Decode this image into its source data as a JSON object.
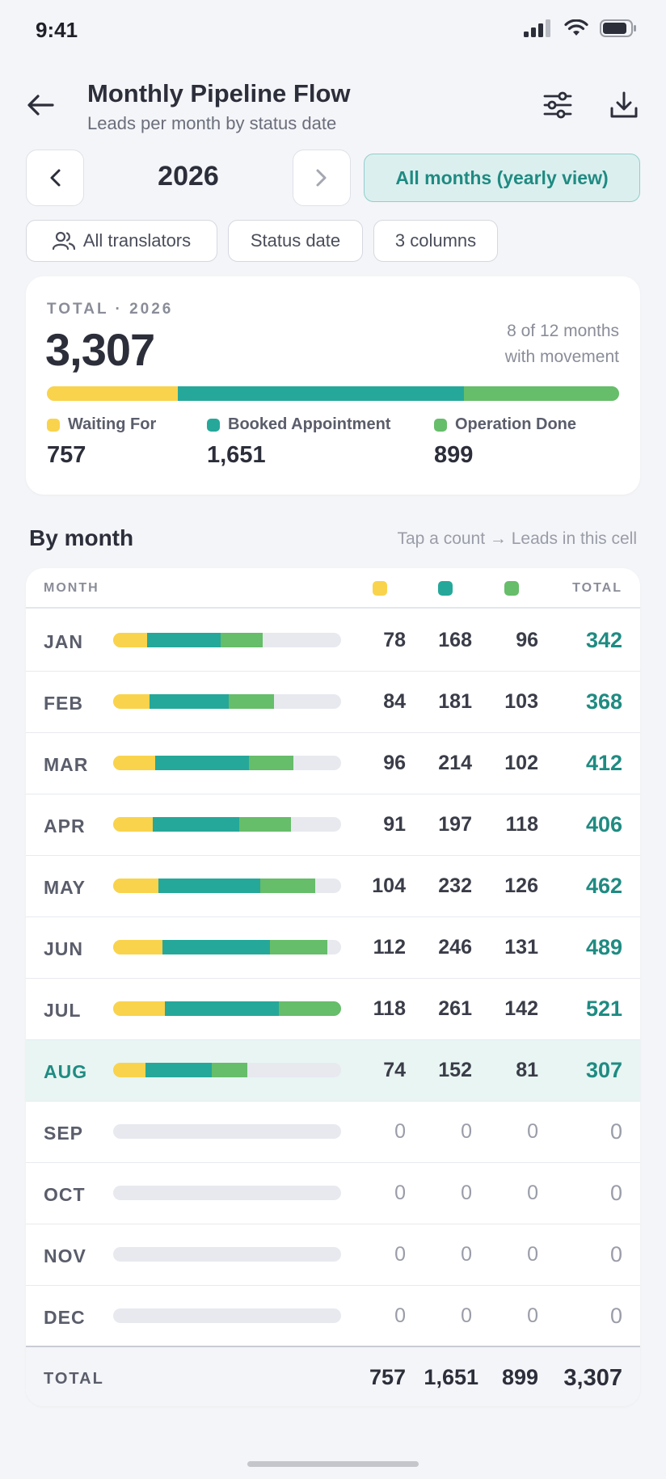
{
  "status_bar": {
    "time": "9:41"
  },
  "header": {
    "title": "Monthly Pipeline Flow",
    "subtitle": "Leads per month by status date"
  },
  "year_nav": {
    "year": "2026",
    "yearly_button": "All months (yearly view)"
  },
  "chips": {
    "translators": "All translators",
    "date_type": "Status date",
    "columns": "3 columns"
  },
  "colors": {
    "waiting": "#f9d34b",
    "booked": "#25a89a",
    "done": "#66bd6a",
    "accent": "#1f8b82"
  },
  "summary": {
    "caption": "TOTAL · 2026",
    "total": "3,307",
    "months_line1": "8 of 12 months",
    "months_line2": "with movement",
    "waiting_label": "Waiting For",
    "waiting_value": "757",
    "booked_label": "Booked Appointment",
    "booked_value": "1,651",
    "done_label": "Operation Done",
    "done_value": "899",
    "shares": {
      "waiting": 757,
      "booked": 1651,
      "done": 899
    }
  },
  "by_month": {
    "title": "By month",
    "hint": "Tap a count → Leads in this cell",
    "header_month": "MONTH",
    "header_total": "TOTAL",
    "bar_scale_max": 521,
    "rows": [
      {
        "month": "JAN",
        "w": 78,
        "b": 168,
        "d": 96,
        "total": 342
      },
      {
        "month": "FEB",
        "w": 84,
        "b": 181,
        "d": 103,
        "total": 368
      },
      {
        "month": "MAR",
        "w": 96,
        "b": 214,
        "d": 102,
        "total": 412
      },
      {
        "month": "APR",
        "w": 91,
        "b": 197,
        "d": 118,
        "total": 406
      },
      {
        "month": "MAY",
        "w": 104,
        "b": 232,
        "d": 126,
        "total": 462
      },
      {
        "month": "JUN",
        "w": 112,
        "b": 246,
        "d": 131,
        "total": 489
      },
      {
        "month": "JUL",
        "w": 118,
        "b": 261,
        "d": 142,
        "total": 521
      },
      {
        "month": "AUG",
        "w": 74,
        "b": 152,
        "d": 81,
        "total": 307,
        "active": true
      },
      {
        "month": "SEP",
        "w": 0,
        "b": 0,
        "d": 0,
        "total": 0
      },
      {
        "month": "OCT",
        "w": 0,
        "b": 0,
        "d": 0,
        "total": 0
      },
      {
        "month": "NOV",
        "w": 0,
        "b": 0,
        "d": 0,
        "total": 0
      },
      {
        "month": "DEC",
        "w": 0,
        "b": 0,
        "d": 0,
        "total": 0
      }
    ],
    "footer": {
      "label": "TOTAL",
      "waiting": "757",
      "booked": "1,651",
      "done": "899",
      "total": "3,307"
    }
  }
}
